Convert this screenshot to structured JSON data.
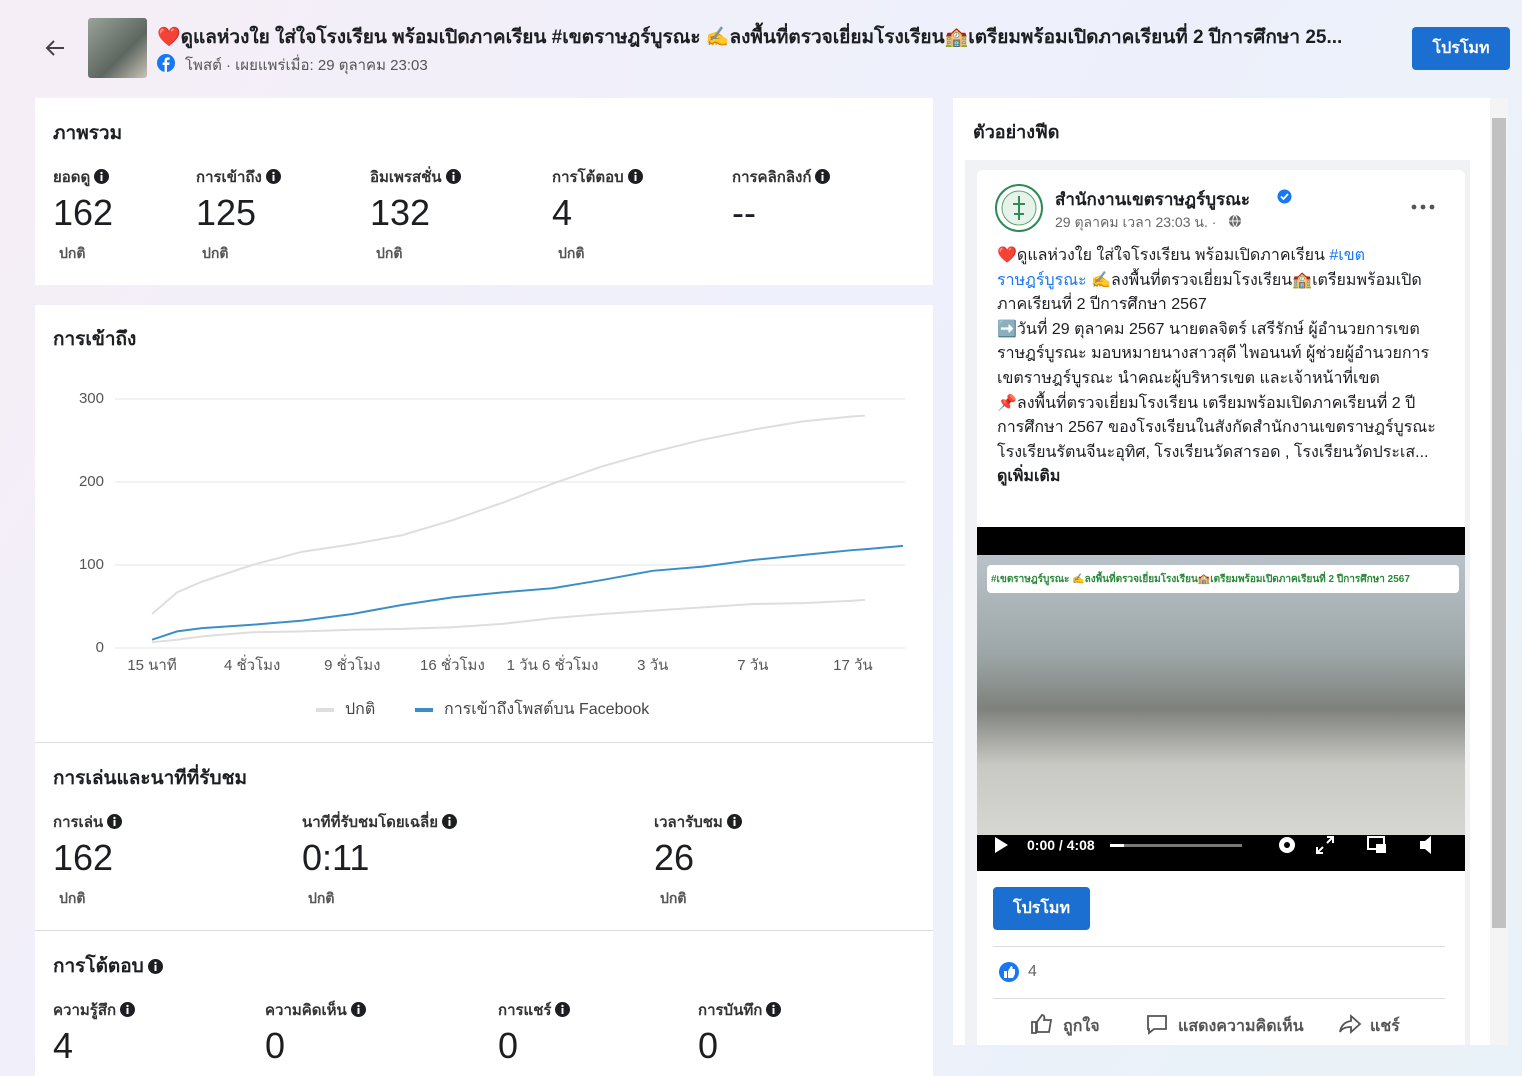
{
  "header": {
    "title": "❤️ดูแลห่วงใย ใส่ใจโรงเรียน พร้อมเปิดภาคเรียน #เขตราษฎร์บูรณะ ✍️ลงพื้นที่ตรวจเยี่ยมโรงเรียน🏫เตรียมพร้อมเปิดภาคเรียนที่ 2 ปีการศึกษา 25...",
    "subtitle": "โพสต์ · เผยแพร่เมื่อ: 29 ตุลาคม 23:03",
    "promote_button": "โปรโมท"
  },
  "overview": {
    "title": "ภาพรวม",
    "metrics": [
      {
        "label": "ยอดดู",
        "value": "162",
        "status": "ปกติ"
      },
      {
        "label": "การเข้าถึง",
        "value": "125",
        "status": "ปกติ"
      },
      {
        "label": "อิมเพรสชั่น",
        "value": "132",
        "status": "ปกติ"
      },
      {
        "label": "การโต้ตอบ",
        "value": "4",
        "status": "ปกติ"
      },
      {
        "label": "การคลิกลิงก์",
        "value": "--"
      }
    ]
  },
  "reach": {
    "title": "การเข้าถึง"
  },
  "chart_data": {
    "type": "line",
    "x": [
      0,
      0.25,
      0.5,
      1,
      1.5,
      2,
      2.5,
      3,
      3.5,
      4,
      4.5,
      5,
      5.5,
      6,
      6.5,
      7,
      7.12,
      7.5
    ],
    "xticks": [
      {
        "value": 0,
        "label": "15 นาที"
      },
      {
        "value": 1,
        "label": "4 ชั่วโมง"
      },
      {
        "value": 2,
        "label": "9 ชั่วโมง"
      },
      {
        "value": 3,
        "label": "16 ชั่วโมง"
      },
      {
        "value": 4,
        "label": "1 วัน 6 ชั่วโมง"
      },
      {
        "value": 5,
        "label": "3 วัน"
      },
      {
        "value": 6,
        "label": "7 วัน"
      },
      {
        "value": 7,
        "label": "17 วัน"
      }
    ],
    "xlim": [
      -0.37,
      7.52
    ],
    "ylim": [
      0,
      300
    ],
    "yticks": [
      0,
      100,
      200,
      300
    ],
    "grid": true,
    "legend": "bottom",
    "series": [
      {
        "name": "ปกติ",
        "color": "#dedede",
        "values": [
          41,
          67,
          80,
          100,
          116,
          125,
          136,
          154,
          175,
          198,
          219,
          236,
          251,
          263,
          273,
          279,
          280,
          null
        ],
        "lower": [
          7,
          10,
          14,
          19,
          20,
          22,
          23,
          25,
          29,
          36,
          41,
          45,
          49,
          53,
          54,
          57,
          58,
          null
        ]
      },
      {
        "name": "การเข้าถึงโพสต์บน Facebook",
        "color": "#3b8fc8",
        "values": [
          10,
          20,
          24,
          28,
          33,
          41,
          52,
          61,
          67,
          72,
          82,
          93,
          98,
          106,
          112,
          118,
          119,
          123
        ]
      }
    ]
  },
  "playback": {
    "title": "การเล่นและนาทีที่รับชม",
    "metrics": [
      {
        "label": "การเล่น",
        "value": "162",
        "status": "ปกติ"
      },
      {
        "label": "นาทีที่รับชมโดยเฉลี่ย",
        "value": "0:11",
        "status": "ปกติ"
      },
      {
        "label": "เวลารับชม",
        "value": "26",
        "status": "ปกติ"
      }
    ]
  },
  "engagement": {
    "title": "การโต้ตอบ",
    "metrics": [
      {
        "label": "ความรู้สึก",
        "value": "4"
      },
      {
        "label": "ความคิดเห็น",
        "value": "0"
      },
      {
        "label": "การแชร์",
        "value": "0"
      },
      {
        "label": "การบันทึก",
        "value": "0"
      }
    ]
  },
  "feed_preview": {
    "title": "ตัวอย่างฟีด",
    "page_name": "สำนักงานเขตราษฎร์บูรณะ",
    "timestamp": "29 ตุลาคม เวลา 23:03 น. ·",
    "text_start": "❤️ดูแลห่วงใย ใส่ใจโรงเรียน พร้อมเปิดภาคเรียน",
    "hashtag": "#เขตราษฎร์บูรณะ",
    "text_rest": " ✍️ลงพื้นที่ตรวจเยี่ยมโรงเรียน🏫เตรียมพร้อมเปิดภาคเรียนที่ 2 ปีการศึกษา 2567",
    "paragraph_2": "➡️วันที่ 29  ตุลาคม 2567 นายตลจิตร์ เสรีรักษ์ ผู้อำนวยการเขตราษฎร์บูรณะ มอบหมายนางสาวสุดี ไพอนนท์ ผู้ช่วยผู้อำนวยการเขตราษฎร์บูรณะ นำคณะผู้บริหารเขต และเจ้าหน้าที่เขต",
    "paragraph_3": "📌ลงพื้นที่ตรวจเยี่ยมโรงเรียน เตรียมพร้อมเปิดภาคเรียนที่ 2 ปีการศึกษา 2567 ของโรงเรียนในสังกัดสำนักงานเขตราษฎร์บูรณะ โรงเรียนรัตนจีนะอุทิศ, โรงเรียนวัดสารอด , โรงเรียนวัดประเส...",
    "see_more": "ดูเพิ่มเติม",
    "video_banner": "#เขตราษฎร์บูรณะ ✍️ลงพื้นที่ตรวจเยี่ยมโรงเรียน🏫เตรียมพร้อมเปิดภาคเรียนที่ 2 ปีการศึกษา 2567",
    "video_time": "0:00 / 4:08",
    "promote_button": "โปรโมท",
    "reaction_count": "4",
    "actions": [
      "ถูกใจ",
      "แสดงความคิดเห็น",
      "แชร์"
    ]
  }
}
